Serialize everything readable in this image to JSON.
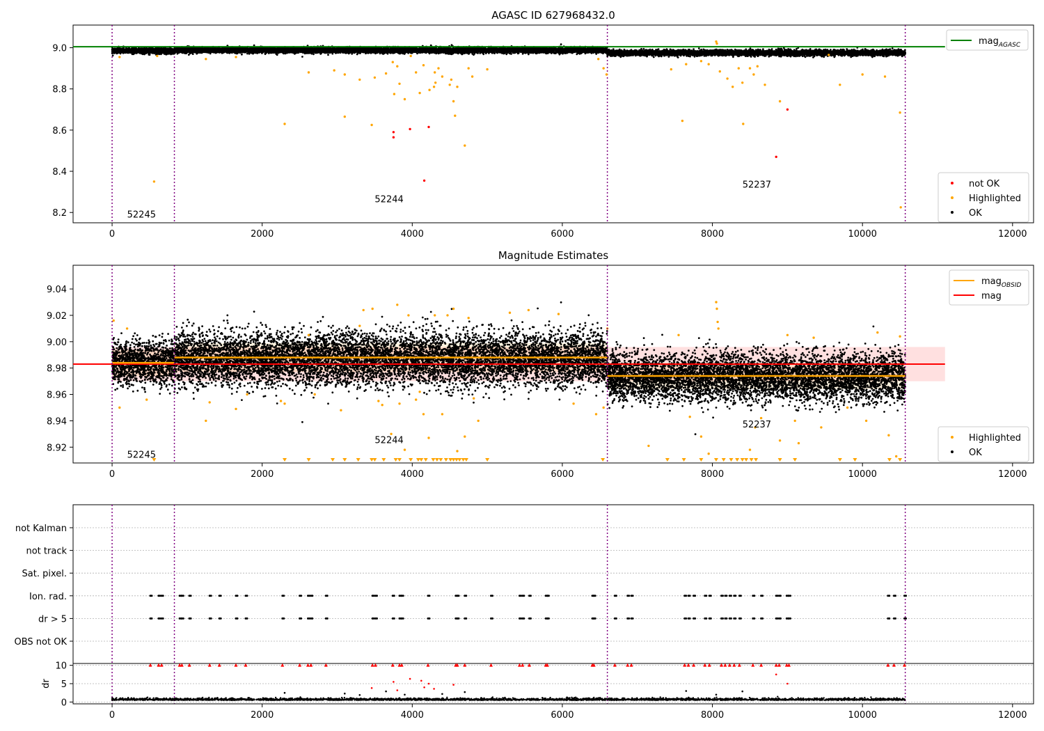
{
  "chart_data": [
    {
      "type": "scatter",
      "title": "AGASC ID 627968432.0",
      "xlabel": "",
      "ylabel": "",
      "xlim": [
        -520,
        12280
      ],
      "ylim": [
        8.15,
        9.11
      ],
      "x_ticks": [
        0,
        2000,
        4000,
        6000,
        8000,
        10000,
        12000
      ],
      "y_ticks": [
        8.2,
        8.4,
        8.6,
        8.8,
        9.0
      ],
      "y_tick_labels": [
        "8.2",
        "8.4",
        "8.6",
        "8.8",
        "9.0"
      ],
      "grid": false,
      "obsid_boundaries": [
        0,
        830,
        6600,
        10570
      ],
      "obsid_labels": [
        {
          "text": "52245",
          "x": 200,
          "y": 8.175
        },
        {
          "text": "52244",
          "x": 3500,
          "y": 8.25
        },
        {
          "text": "52237",
          "x": 8400,
          "y": 8.32
        }
      ],
      "mag_agasc_line": {
        "value": 9.005,
        "x_range": [
          -520,
          11100
        ]
      },
      "ok_band": [
        {
          "x_range": [
            0,
            830
          ],
          "center": 8.985,
          "spread": 0.012
        },
        {
          "x_range": [
            830,
            6600
          ],
          "center": 8.988,
          "spread": 0.012
        },
        {
          "x_range": [
            6600,
            10570
          ],
          "center": 8.975,
          "spread": 0.012
        }
      ],
      "series": [
        {
          "name": "not OK",
          "color": "#ff0000",
          "points": [
            [
              3750,
              8.59
            ],
            [
              3750,
              8.565
            ],
            [
              3970,
              8.605
            ],
            [
              4160,
              8.355
            ],
            [
              4220,
              8.615
            ],
            [
              8850,
              8.47
            ],
            [
              9000,
              8.7
            ]
          ]
        },
        {
          "name": "Highlighted",
          "color": "#ffa500",
          "points": [
            [
              100,
              8.955
            ],
            [
              560,
              8.35
            ],
            [
              600,
              8.96
            ],
            [
              1250,
              8.945
            ],
            [
              1650,
              8.955
            ],
            [
              2300,
              8.63
            ],
            [
              2620,
              8.88
            ],
            [
              2960,
              8.89
            ],
            [
              3100,
              8.665
            ],
            [
              3100,
              8.87
            ],
            [
              3300,
              8.845
            ],
            [
              3460,
              8.625
            ],
            [
              3500,
              8.855
            ],
            [
              3650,
              8.875
            ],
            [
              3740,
              8.93
            ],
            [
              3760,
              8.775
            ],
            [
              3800,
              8.91
            ],
            [
              3830,
              8.825
            ],
            [
              3900,
              8.75
            ],
            [
              3980,
              8.96
            ],
            [
              4050,
              8.88
            ],
            [
              4100,
              8.78
            ],
            [
              4150,
              8.915
            ],
            [
              4230,
              8.795
            ],
            [
              4290,
              8.81
            ],
            [
              4300,
              8.88
            ],
            [
              4310,
              8.83
            ],
            [
              4350,
              8.9
            ],
            [
              4400,
              8.86
            ],
            [
              4500,
              8.82
            ],
            [
              4520,
              8.845
            ],
            [
              4550,
              8.74
            ],
            [
              4570,
              8.67
            ],
            [
              4600,
              8.81
            ],
            [
              4700,
              8.525
            ],
            [
              4750,
              8.9
            ],
            [
              4800,
              8.86
            ],
            [
              5000,
              8.895
            ],
            [
              6480,
              8.945
            ],
            [
              6550,
              8.9
            ],
            [
              6590,
              8.87
            ],
            [
              7450,
              8.895
            ],
            [
              7600,
              8.645
            ],
            [
              7650,
              8.92
            ],
            [
              7850,
              8.935
            ],
            [
              7950,
              8.92
            ],
            [
              8050,
              9.03
            ],
            [
              8060,
              9.02
            ],
            [
              8100,
              8.885
            ],
            [
              8200,
              8.85
            ],
            [
              8270,
              8.81
            ],
            [
              8350,
              8.9
            ],
            [
              8400,
              8.83
            ],
            [
              8410,
              8.63
            ],
            [
              8500,
              8.9
            ],
            [
              8550,
              8.87
            ],
            [
              8600,
              8.91
            ],
            [
              8700,
              8.82
            ],
            [
              8900,
              8.74
            ],
            [
              9550,
              8.965
            ],
            [
              9700,
              8.82
            ],
            [
              10000,
              8.87
            ],
            [
              10300,
              8.86
            ],
            [
              10500,
              8.685
            ],
            [
              10510,
              8.225
            ]
          ]
        }
      ],
      "legends": [
        {
          "position": "upper right",
          "entries": [
            {
              "label": "mag",
              "sub": "AGASC",
              "color": "#008000"
            }
          ]
        },
        {
          "position": "lower right",
          "entries": [
            {
              "label": "not OK",
              "color": "#ff0000"
            },
            {
              "label": "Highlighted",
              "color": "#ffa500"
            },
            {
              "label": "OK",
              "color": "#000000"
            }
          ]
        }
      ]
    },
    {
      "type": "scatter",
      "title": "Magnitude Estimates",
      "xlabel": "",
      "ylabel": "",
      "xlim": [
        -520,
        12280
      ],
      "ylim": [
        8.908,
        9.058
      ],
      "x_ticks": [
        0,
        2000,
        4000,
        6000,
        8000,
        10000,
        12000
      ],
      "y_ticks": [
        8.92,
        8.94,
        8.96,
        8.98,
        9.0,
        9.02,
        9.04
      ],
      "y_tick_labels": [
        "8.92",
        "8.94",
        "8.96",
        "8.98",
        "9.00",
        "9.02",
        "9.04"
      ],
      "grid": false,
      "obsid_boundaries": [
        0,
        830,
        6600,
        10570
      ],
      "obsid_labels": [
        {
          "text": "52245",
          "x": 200,
          "y": 8.912
        },
        {
          "text": "52244",
          "x": 3500,
          "y": 8.923
        },
        {
          "text": "52237",
          "x": 8400,
          "y": 8.935
        }
      ],
      "mag_line": {
        "value": 8.983,
        "x_range": [
          -520,
          11100
        ],
        "band": [
          8.97,
          8.996
        ],
        "band_x_range": [
          0,
          11100
        ]
      },
      "mag_obsid_segments": [
        {
          "x_range": [
            0,
            830
          ],
          "value": 8.984,
          "band": [
            8.974,
            8.994
          ]
        },
        {
          "x_range": [
            830,
            6600
          ],
          "value": 8.988,
          "band": [
            8.977,
            8.999
          ]
        },
        {
          "x_range": [
            6600,
            10570
          ],
          "value": 8.974,
          "band": [
            8.964,
            8.984
          ]
        }
      ],
      "ok_band": [
        {
          "x_range": [
            0,
            830
          ],
          "center": 8.984,
          "spread": 0.016
        },
        {
          "x_range": [
            830,
            6600
          ],
          "center": 8.987,
          "spread": 0.02
        },
        {
          "x_range": [
            6600,
            10570
          ],
          "center": 8.973,
          "spread": 0.018
        }
      ],
      "highlighted_points": [
        [
          20,
          9.016
        ],
        [
          100,
          8.95
        ],
        [
          200,
          9.01
        ],
        [
          460,
          8.956
        ],
        [
          1250,
          8.94
        ],
        [
          1300,
          8.954
        ],
        [
          1650,
          8.949
        ],
        [
          1800,
          8.96
        ],
        [
          2250,
          8.955
        ],
        [
          2300,
          8.953
        ],
        [
          2620,
          9.005
        ],
        [
          2700,
          8.96
        ],
        [
          3050,
          8.948
        ],
        [
          3300,
          9.012
        ],
        [
          3350,
          9.024
        ],
        [
          3470,
          9.025
        ],
        [
          3550,
          8.955
        ],
        [
          3600,
          8.952
        ],
        [
          3720,
          8.93
        ],
        [
          3800,
          9.028
        ],
        [
          3830,
          8.953
        ],
        [
          3900,
          8.918
        ],
        [
          3950,
          9.02
        ],
        [
          4050,
          8.956
        ],
        [
          4100,
          8.962
        ],
        [
          4150,
          8.945
        ],
        [
          4220,
          8.927
        ],
        [
          4300,
          9.02
        ],
        [
          4400,
          8.945
        ],
        [
          4470,
          9.02
        ],
        [
          4550,
          9.025
        ],
        [
          4600,
          8.917
        ],
        [
          4700,
          8.928
        ],
        [
          4750,
          9.018
        ],
        [
          4820,
          8.957
        ],
        [
          4880,
          8.94
        ],
        [
          5300,
          9.022
        ],
        [
          5550,
          9.024
        ],
        [
          5950,
          9.021
        ],
        [
          6150,
          8.953
        ],
        [
          6450,
          8.945
        ],
        [
          6550,
          8.95
        ],
        [
          6600,
          9.01
        ],
        [
          7150,
          8.921
        ],
        [
          7550,
          9.005
        ],
        [
          7700,
          8.943
        ],
        [
          7850,
          8.928
        ],
        [
          7950,
          8.915
        ],
        [
          8050,
          9.03
        ],
        [
          8060,
          9.025
        ],
        [
          8070,
          9.015
        ],
        [
          8080,
          9.01
        ],
        [
          8500,
          8.918
        ],
        [
          8570,
          8.935
        ],
        [
          8650,
          8.942
        ],
        [
          8900,
          8.925
        ],
        [
          9000,
          9.005
        ],
        [
          9100,
          8.94
        ],
        [
          9150,
          8.923
        ],
        [
          9350,
          9.003
        ],
        [
          9450,
          8.935
        ],
        [
          9800,
          8.95
        ],
        [
          10050,
          8.94
        ],
        [
          10200,
          9.007
        ],
        [
          10350,
          8.929
        ],
        [
          10450,
          8.913
        ],
        [
          10500,
          9.004
        ]
      ],
      "below_range_markers_x": [
        560,
        2300,
        2620,
        2940,
        3100,
        3280,
        3460,
        3500,
        3620,
        3780,
        3830,
        3980,
        4080,
        4120,
        4180,
        4280,
        4330,
        4380,
        4450,
        4510,
        4550,
        4590,
        4630,
        4680,
        4720,
        5000,
        6540,
        7400,
        7620,
        7850,
        8050,
        8150,
        8250,
        8330,
        8400,
        8450,
        8520,
        8580,
        8900,
        9100,
        9700,
        9900,
        10360,
        10500
      ],
      "legends": [
        {
          "position": "upper right",
          "entries": [
            {
              "label": "mag",
              "sub": "OBSID",
              "color": "#ffa500"
            },
            {
              "label": "mag",
              "color": "#ff0000"
            }
          ]
        },
        {
          "position": "lower right",
          "entries": [
            {
              "label": "Highlighted",
              "color": "#ffa500"
            },
            {
              "label": "OK",
              "color": "#000000"
            }
          ]
        }
      ]
    },
    {
      "type": "scatter",
      "title": "",
      "xlabel": "",
      "ylabel": "",
      "xlim": [
        -520,
        12280
      ],
      "grid": true,
      "obsid_boundaries": [
        0,
        830,
        6600,
        10570
      ],
      "flag_rows": [
        "not Kalman",
        "not track",
        "Sat. pixel.",
        "Ion. rad.",
        "dr > 5",
        "OBS not OK"
      ],
      "flag_events_x": [
        510,
        620,
        660,
        900,
        930,
        1030,
        1300,
        1430,
        1650,
        1780,
        2270,
        2500,
        2610,
        2650,
        2850,
        3470,
        3510,
        3740,
        3830,
        3860,
        4210,
        4580,
        4600,
        4700,
        5050,
        5430,
        5470,
        5560,
        5780,
        5800,
        6400,
        6420,
        6700,
        6870,
        6920,
        7630,
        7680,
        7750,
        7900,
        7960,
        8120,
        8170,
        8230,
        8290,
        8360,
        8540,
        8650,
        8850,
        8890,
        8990,
        9020,
        10340,
        10420,
        10560
      ],
      "dr": {
        "ylabel": "dr",
        "y_ticks": [
          0,
          5,
          10
        ],
        "y_tick_labels": [
          "0",
          "5",
          "10"
        ],
        "ylim": [
          -0.5,
          10.5
        ],
        "baseline_level": 0.5,
        "flagged_level": 10,
        "scattered_points": [
          [
            2300,
            2.5
          ],
          [
            3100,
            2.3
          ],
          [
            3300,
            1.9
          ],
          [
            3460,
            3.8
          ],
          [
            3650,
            2.9
          ],
          [
            3750,
            5.5
          ],
          [
            3800,
            3.2
          ],
          [
            3900,
            2.0
          ],
          [
            3970,
            6.3
          ],
          [
            4120,
            5.8
          ],
          [
            4160,
            4.0
          ],
          [
            4220,
            5.0
          ],
          [
            4290,
            3.6
          ],
          [
            4400,
            2.2
          ],
          [
            4550,
            4.7
          ],
          [
            4700,
            2.7
          ],
          [
            7650,
            3.0
          ],
          [
            8050,
            2.0
          ],
          [
            8400,
            2.9
          ],
          [
            8850,
            7.5
          ],
          [
            9000,
            5.0
          ]
        ]
      }
    }
  ]
}
